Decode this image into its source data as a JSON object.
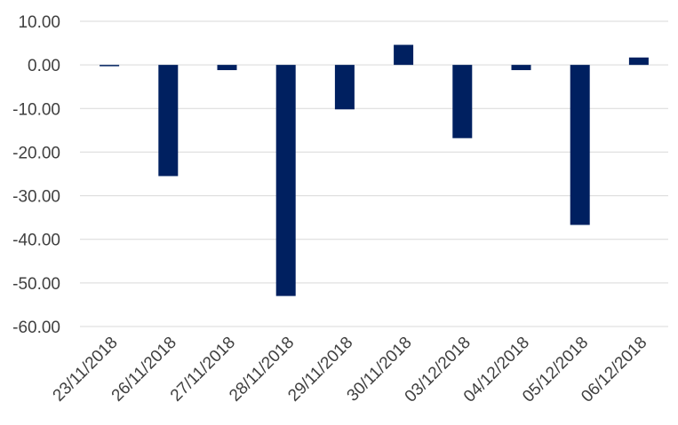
{
  "chart_data": {
    "type": "bar",
    "title": "",
    "xlabel": "",
    "ylabel": "",
    "categories": [
      "23/11/2018",
      "26/11/2018",
      "27/11/2018",
      "28/11/2018",
      "29/11/2018",
      "30/11/2018",
      "03/12/2018",
      "04/12/2018",
      "05/12/2018",
      "06/12/2018"
    ],
    "series": [
      {
        "values": [
          -0.3,
          -25.5,
          -1.2,
          -53.0,
          -10.2,
          4.6,
          -16.8,
          -1.2,
          -36.7,
          1.7
        ]
      }
    ],
    "ylim": [
      -60,
      10
    ],
    "yticks": [
      10,
      0,
      -10,
      -20,
      -30,
      -40,
      -50,
      -60
    ],
    "ytick_labels": [
      "10.00",
      "0.00",
      "-10.00",
      "-20.00",
      "-30.00",
      "-40.00",
      "-50.00",
      "-60.00"
    ],
    "grid": true,
    "legend": "none",
    "bar_color": "#002060"
  }
}
